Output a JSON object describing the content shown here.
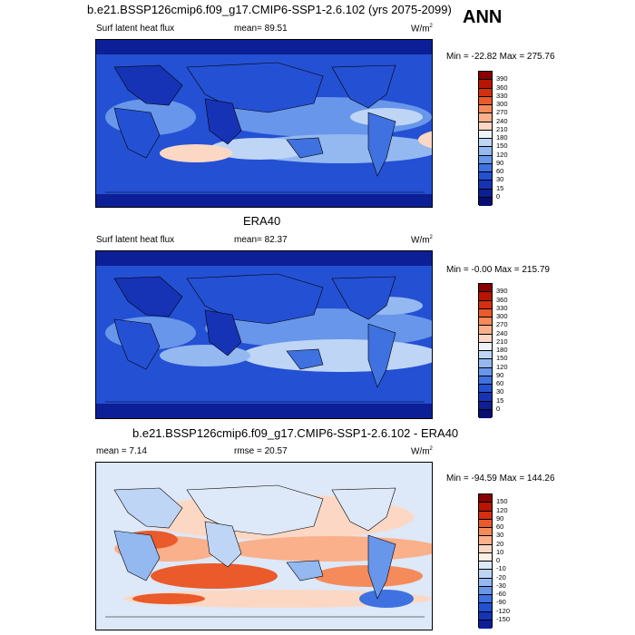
{
  "header": {
    "title": "b.e21.BSSP126cmip6.f09_g17.CMIP6-SSP1-2.6.102 (yrs 2075-2099)",
    "season": "ANN"
  },
  "panels": [
    {
      "title": "b.e21.BSSP126cmip6.f09_g17.CMIP6-SSP1-2.6.102 (yrs 2075-2099)",
      "left_label": "Surf latent heat flux",
      "center_label": "mean=  89.51",
      "units": "W/m",
      "units_exp": "2",
      "minmax": "Min = -22.82 Max = 275.76",
      "colorbar_labels": [
        "390",
        "360",
        "330",
        "300",
        "270",
        "240",
        "210",
        "180",
        "150",
        "120",
        "90",
        "60",
        "30",
        "15",
        "0"
      ],
      "colorbar_colors": [
        "#8a0000",
        "#b81500",
        "#d43010",
        "#ea5a2a",
        "#f58a5a",
        "#fab08a",
        "#fcd8c4",
        "#eef2fb",
        "#bfd5f5",
        "#94b8f0",
        "#6896ea",
        "#3f71e0",
        "#2450d4",
        "#1733b5",
        "#0d1f96",
        "#060e72"
      ]
    },
    {
      "title": "ERA40",
      "left_label": "Surf latent heat flux",
      "center_label": "mean=  82.37",
      "units": "W/m",
      "units_exp": "2",
      "minmax": "Min = -0.00 Max = 215.79",
      "colorbar_labels": [
        "390",
        "360",
        "330",
        "300",
        "270",
        "240",
        "210",
        "180",
        "150",
        "120",
        "90",
        "60",
        "30",
        "15",
        "0"
      ],
      "colorbar_colors": [
        "#8a0000",
        "#b81500",
        "#d43010",
        "#ea5a2a",
        "#f58a5a",
        "#fab08a",
        "#fcd8c4",
        "#eef2fb",
        "#bfd5f5",
        "#94b8f0",
        "#6896ea",
        "#3f71e0",
        "#2450d4",
        "#1733b5",
        "#0d1f96",
        "#060e72"
      ]
    },
    {
      "title": "b.e21.BSSP126cmip6.f09_g17.CMIP6-SSP1-2.6.102 - ERA40",
      "left_label": "mean =   7.14",
      "center_label": "rmse =  20.57",
      "units": "W/m",
      "units_exp": "2",
      "minmax": "Min = -94.59 Max = 144.26",
      "colorbar_labels": [
        "150",
        "120",
        "90",
        "60",
        "30",
        "20",
        "10",
        "0",
        "-10",
        "-20",
        "-30",
        "-60",
        "-90",
        "-120",
        "-150"
      ],
      "colorbar_colors": [
        "#8a0000",
        "#b81500",
        "#d43010",
        "#ea5a2a",
        "#f58a5a",
        "#fab08a",
        "#fcd8c4",
        "#fdeee4",
        "#dde8f8",
        "#bfd5f5",
        "#94b8f0",
        "#6896ea",
        "#3f71e0",
        "#2450d4",
        "#1733b5",
        "#0d1f96"
      ]
    }
  ]
}
